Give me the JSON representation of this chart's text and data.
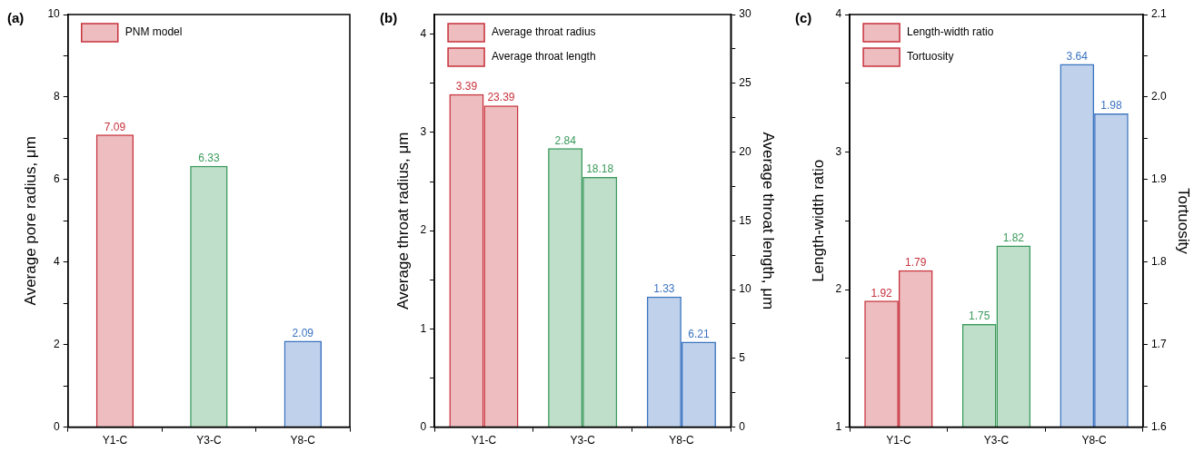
{
  "chart_data": [
    {
      "type": "bar",
      "title": "(a)",
      "ylabel": "Average pore radius, μm",
      "categories": [
        "Y1-C",
        "Y3-C",
        "Y8-C"
      ],
      "legend": "top left",
      "data_labels": true,
      "series": [
        {
          "name": "PNM model",
          "color": "#c8323c",
          "colors": [
            "#c8323c",
            "#3a9a5b",
            "#3a72c0"
          ],
          "values": [
            7.09,
            6.33,
            2.09
          ]
        }
      ],
      "ylim": [
        0,
        10
      ],
      "yticks": [
        0,
        {
          "value": 1,
          "label": null
        },
        2,
        {
          "value": 3,
          "label": null
        },
        4,
        {
          "value": 5,
          "label": null
        },
        6,
        {
          "value": 7,
          "label": null
        },
        8,
        {
          "value": 9,
          "label": null
        },
        10
      ]
    },
    {
      "type": "bar",
      "title": "(b)",
      "ylabel": "Average throat radius, μm",
      "y2label": "Average throat length, μm",
      "categories": [
        "Y1-C",
        "Y3-C",
        "Y8-C"
      ],
      "legend": "top left",
      "data_labels": true,
      "series": [
        {
          "name": "Average throat radius",
          "color": "#c8323c",
          "colors": [
            "#c8323c",
            "#3a9a5b",
            "#3a72c0"
          ],
          "values": [
            3.39,
            2.84,
            1.33
          ]
        },
        {
          "name": "Average throat length",
          "color": "#c8323c",
          "colors": [
            "#c8323c",
            "#3a9a5b",
            "#3a72c0"
          ],
          "values": [
            23.39,
            18.18,
            6.21
          ],
          "axis": "y2"
        }
      ],
      "ylim": [
        0,
        4.2
      ],
      "yticks": [
        0,
        {
          "value": 0.5,
          "label": null
        },
        1,
        {
          "value": 1.5,
          "label": null
        },
        2,
        {
          "value": 2.5,
          "label": null
        },
        3,
        {
          "value": 3.5,
          "label": null
        },
        4
      ],
      "y2lim": [
        0,
        30
      ],
      "y2ticks": [
        0,
        {
          "value": 2.5,
          "label": null
        },
        5,
        {
          "value": 7.5,
          "label": null
        },
        10,
        {
          "value": 12.5,
          "label": null
        },
        15,
        {
          "value": 17.5,
          "label": null
        },
        20,
        {
          "value": 22.5,
          "label": null
        },
        25,
        {
          "value": 27.5,
          "label": null
        },
        30
      ]
    },
    {
      "type": "bar",
      "title": "(c)",
      "ylabel": "Length-width ratio",
      "y2label": "Tortuosity",
      "categories": [
        "Y1-C",
        "Y3-C",
        "Y8-C"
      ],
      "legend": "top left",
      "data_labels": true,
      "series": [
        {
          "name": "Length-width ratio",
          "color": "#c8323c",
          "colors": [
            "#c8323c",
            "#3a9a5b",
            "#3a72c0"
          ],
          "values": [
            1.92,
            1.75,
            3.64
          ]
        },
        {
          "name": "Tortuosity",
          "color": "#c8323c",
          "colors": [
            "#c8323c",
            "#3a9a5b",
            "#3a72c0"
          ],
          "values": [
            1.79,
            1.82,
            1.98
          ],
          "axis": "y2"
        }
      ],
      "ylim": [
        1,
        4
      ],
      "yticks": [
        1,
        {
          "value": 1.5,
          "label": null
        },
        2,
        {
          "value": 2.5,
          "label": null
        },
        3,
        {
          "value": 3.5,
          "label": null
        },
        4
      ],
      "y2lim": [
        1.6,
        2.1
      ],
      "y2ticks": [
        1.6,
        {
          "value": 1.65,
          "label": null
        },
        1.7,
        {
          "value": 1.75,
          "label": null
        },
        1.8,
        {
          "value": 1.85,
          "label": null
        },
        1.9,
        {
          "value": 1.95,
          "label": null
        },
        {
          "value": 2.0,
          "label": "2.0"
        },
        {
          "value": 2.05,
          "label": null
        },
        2.1
      ]
    }
  ]
}
